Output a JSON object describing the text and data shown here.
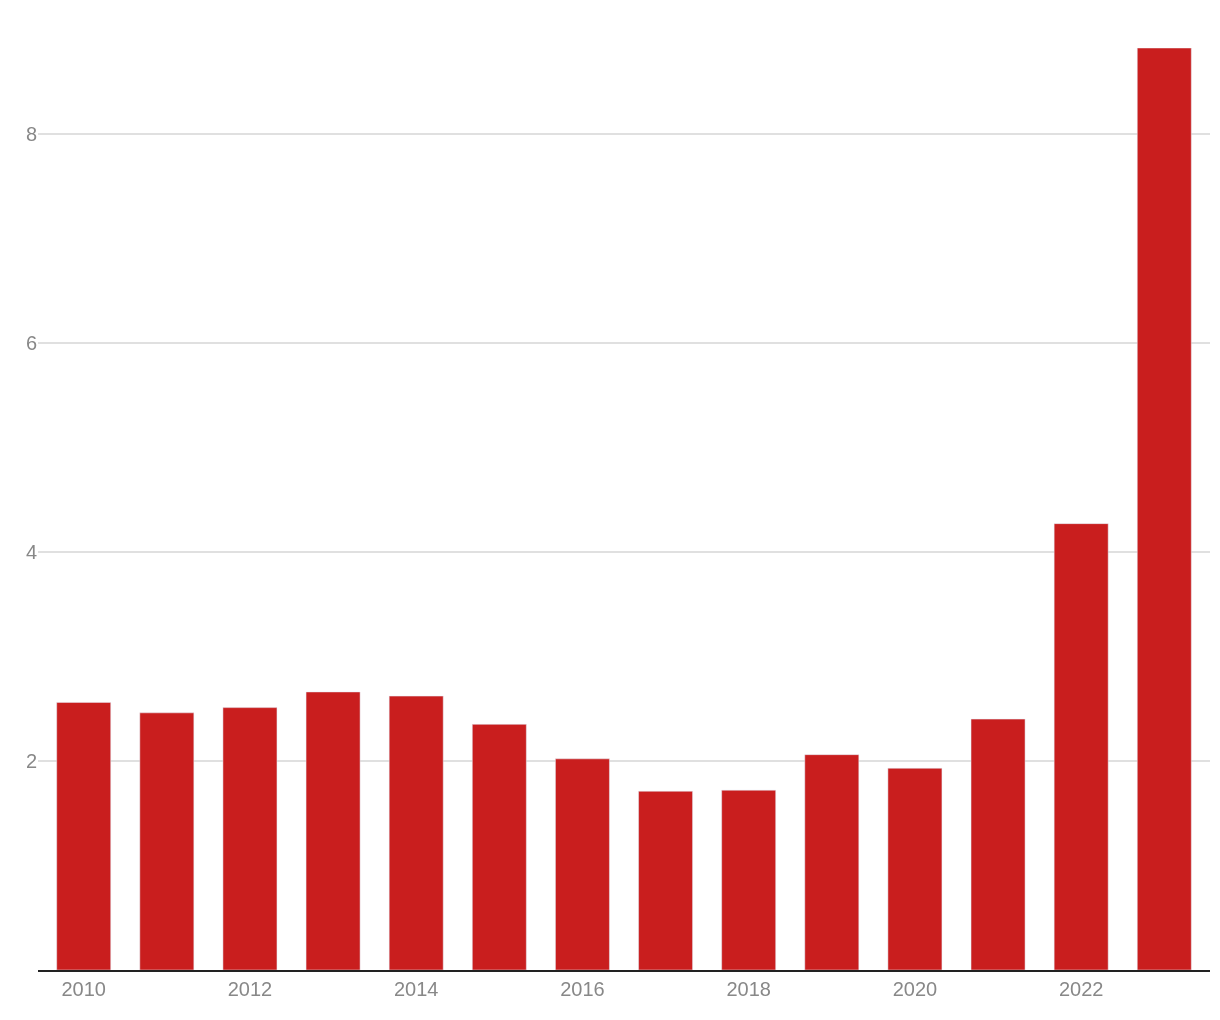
{
  "chart_data": {
    "type": "bar",
    "x": [
      2010,
      2011,
      2012,
      2013,
      2014,
      2015,
      2016,
      2017,
      2018,
      2019,
      2020,
      2021,
      2022,
      2023
    ],
    "values": [
      2.56,
      2.46,
      2.51,
      2.66,
      2.62,
      2.35,
      2.02,
      1.71,
      1.72,
      2.06,
      1.93,
      2.4,
      4.27,
      8.82
    ],
    "color": "#c91e1e",
    "xlim": [
      2009.45,
      2023.55
    ],
    "xticks": [
      2010,
      2012,
      2014,
      2016,
      2018,
      2020,
      2022
    ],
    "ylim": [
      0,
      8.82
    ],
    "yticks": [
      2,
      4,
      6,
      8
    ],
    "grid": "y"
  }
}
